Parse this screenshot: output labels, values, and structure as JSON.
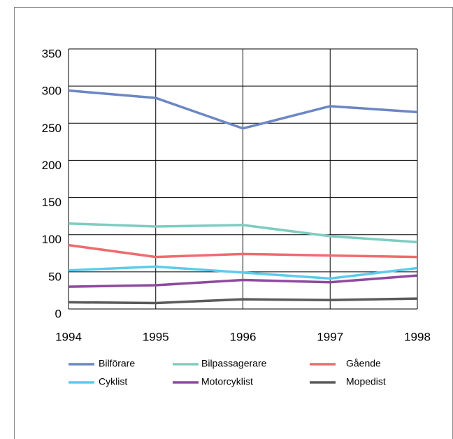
{
  "chart_data": {
    "type": "line",
    "categories": [
      "1994",
      "1995",
      "1996",
      "1997",
      "1998"
    ],
    "series": [
      {
        "name": "Bilförare",
        "color": "#6a87c4",
        "values": [
          294,
          284,
          243,
          273,
          265
        ]
      },
      {
        "name": "Bilpassagerare",
        "color": "#7ccdc0",
        "values": [
          115,
          111,
          113,
          98,
          90
        ]
      },
      {
        "name": "Gående",
        "color": "#ee6b6e",
        "values": [
          86,
          70,
          74,
          72,
          70
        ]
      },
      {
        "name": "Cyklist",
        "color": "#5bcbec",
        "values": [
          52,
          57,
          49,
          41,
          55
        ]
      },
      {
        "name": "Motorcyklist",
        "color": "#8e4a9e",
        "values": [
          30,
          32,
          39,
          36,
          45
        ]
      },
      {
        "name": "Mopedist",
        "color": "#5a5a5a",
        "values": [
          9,
          8,
          13,
          12,
          14
        ]
      }
    ],
    "ylim": [
      0,
      350
    ],
    "yticks": [
      0,
      50,
      100,
      150,
      200,
      250,
      300,
      350
    ],
    "grid": true
  }
}
